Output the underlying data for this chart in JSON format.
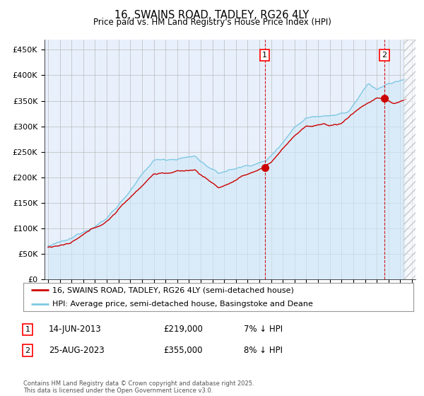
{
  "title": "16, SWAINS ROAD, TADLEY, RG26 4LY",
  "subtitle": "Price paid vs. HM Land Registry's House Price Index (HPI)",
  "ylim": [
    0,
    470000
  ],
  "yticks": [
    0,
    50000,
    100000,
    150000,
    200000,
    250000,
    300000,
    350000,
    400000,
    450000
  ],
  "xlim_start": 1994.7,
  "xlim_end": 2026.3,
  "legend1": "16, SWAINS ROAD, TADLEY, RG26 4LY (semi-detached house)",
  "legend2": "HPI: Average price, semi-detached house, Basingstoke and Deane",
  "sale1_date": "14-JUN-2013",
  "sale1_price": "£219,000",
  "sale1_hpi": "7% ↓ HPI",
  "sale1_year": 2013.45,
  "sale1_value": 219000,
  "sale2_date": "25-AUG-2023",
  "sale2_price": "£355,000",
  "sale2_hpi": "8% ↓ HPI",
  "sale2_year": 2023.64,
  "sale2_value": 355000,
  "hpi_color": "#7ec8e3",
  "price_color": "#cc0000",
  "background_color": "#e8f0fc",
  "hpi_fill_color": "#d0e8f8",
  "footer": "Contains HM Land Registry data © Crown copyright and database right 2025.\nThis data is licensed under the Open Government Licence v3.0."
}
